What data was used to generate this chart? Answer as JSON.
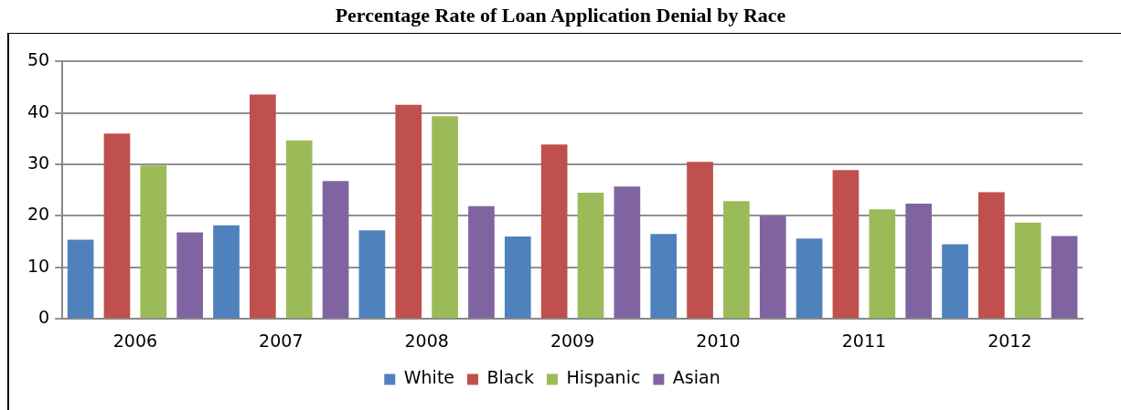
{
  "chart_data": {
    "type": "bar",
    "title": "Percentage Rate of Loan Application Denial by Race",
    "categories": [
      "2006",
      "2007",
      "2008",
      "2009",
      "2010",
      "2011",
      "2012"
    ],
    "series": [
      {
        "name": "White",
        "color": "#4f81bd",
        "values": [
          15.4,
          18.2,
          17.2,
          16.0,
          16.5,
          15.6,
          14.5
        ]
      },
      {
        "name": "Black",
        "color": "#c0504d",
        "values": [
          36.0,
          43.6,
          41.6,
          33.9,
          30.5,
          28.9,
          24.6
        ]
      },
      {
        "name": "Hispanic",
        "color": "#9bbb59",
        "values": [
          29.8,
          34.7,
          39.4,
          24.5,
          22.9,
          21.3,
          18.7
        ]
      },
      {
        "name": "Asian",
        "color": "#8064a2",
        "values": [
          16.8,
          26.8,
          21.9,
          25.7,
          20.0,
          22.4,
          16.1
        ]
      }
    ],
    "ylim": [
      0,
      50
    ],
    "yticks": [
      0,
      10,
      20,
      30,
      40,
      50
    ],
    "grid": "y",
    "legend": "bottom"
  }
}
